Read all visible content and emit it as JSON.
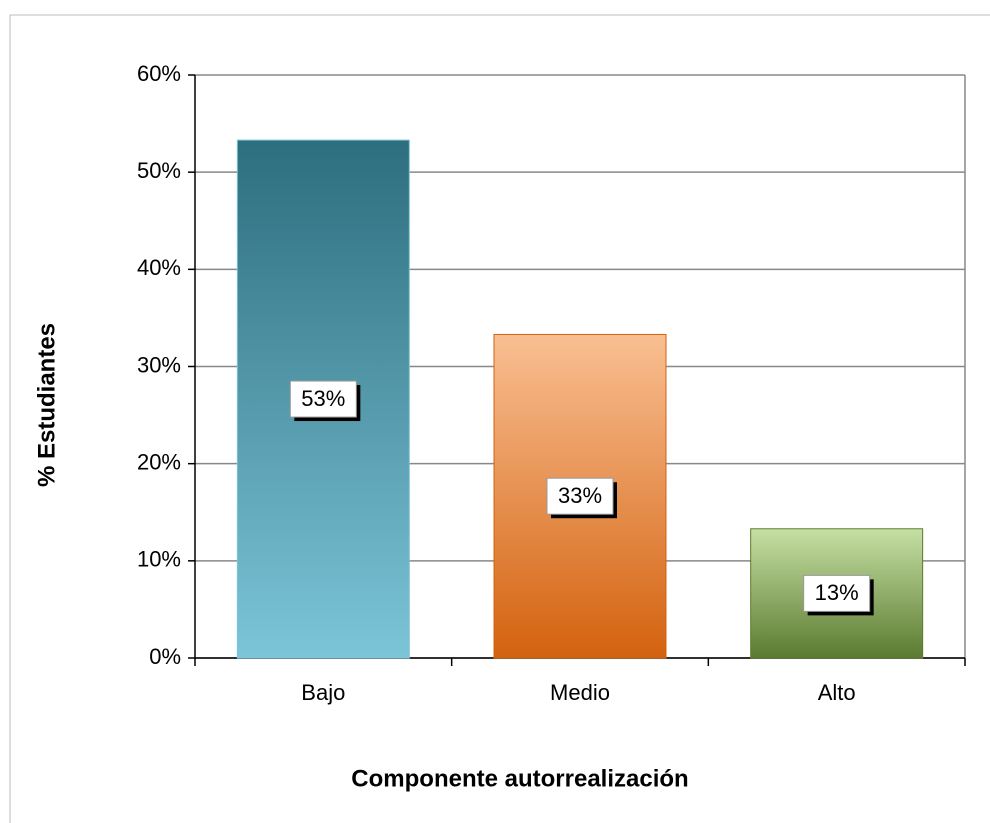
{
  "chart_data": {
    "type": "bar",
    "x_label": "Componente autorrealización",
    "y_label": "% Estudiantes",
    "categories": [
      "Bajo",
      "Medio",
      "Alto"
    ],
    "values": [
      53.3,
      33.3,
      13.3
    ],
    "value_labels": [
      "53%",
      "33%",
      "13%"
    ],
    "colors": [
      [
        "#2d6e7e",
        "#7cc4d8"
      ],
      [
        "#f9bf92",
        "#d3620f"
      ],
      [
        "#c6e0a4",
        "#5b7b30"
      ]
    ],
    "ylim": [
      0,
      60
    ],
    "yticks": [
      {
        "value": 0,
        "label": "0%"
      },
      {
        "value": 10,
        "label": "10%"
      },
      {
        "value": 20,
        "label": "20%"
      },
      {
        "value": 30,
        "label": "30%"
      },
      {
        "value": 40,
        "label": "40%"
      },
      {
        "value": 50,
        "label": "50%"
      },
      {
        "value": 60,
        "label": "60%"
      }
    ],
    "grid": true
  }
}
